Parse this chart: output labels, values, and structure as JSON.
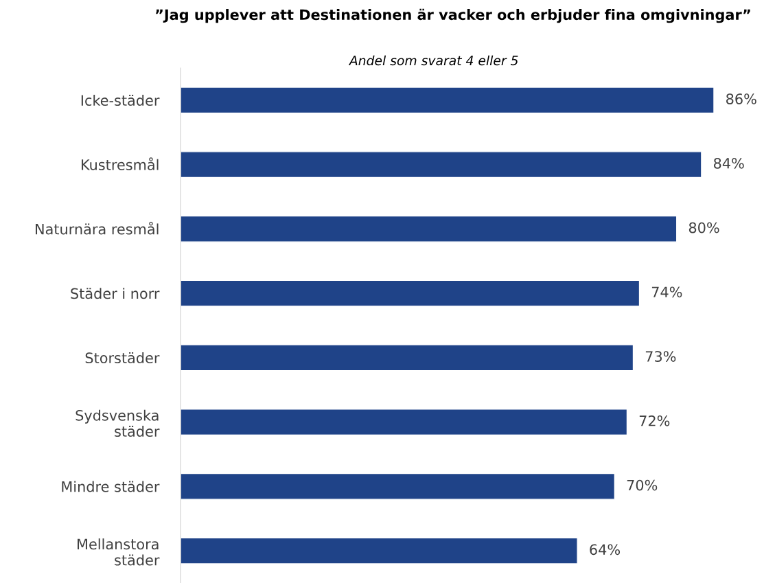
{
  "chart_data": {
    "type": "bar",
    "orientation": "horizontal",
    "title": "”Jag upplever att Destinationen är vacker och erbjuder fina omgivningar”",
    "subtitle": "Andel som svarat 4 eller 5",
    "categories": [
      "Icke-städer",
      "Kustresmål",
      "Naturnära resmål",
      "Städer i norr",
      "Storstäder",
      "Sydsvenska städer",
      "Mindre städer",
      "Mellanstora städer"
    ],
    "values": [
      86,
      84,
      80,
      74,
      73,
      72,
      70,
      64
    ],
    "value_labels": [
      "86%",
      "84%",
      "80%",
      "74%",
      "73%",
      "72%",
      "70%",
      "64%"
    ],
    "color": "#1f4388",
    "grid": false,
    "legend": false
  }
}
